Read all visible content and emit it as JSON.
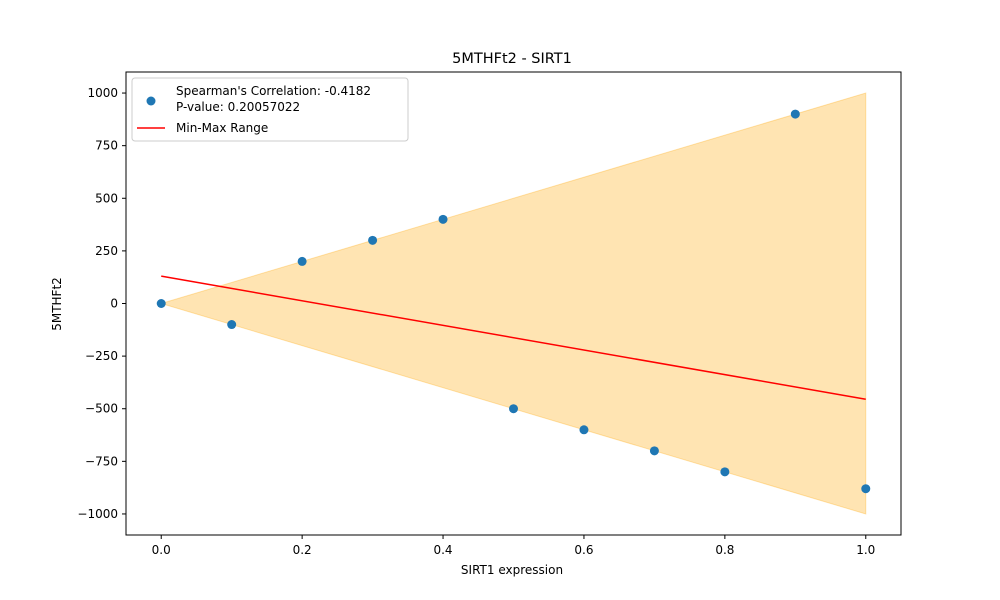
{
  "chart_data": {
    "type": "scatter",
    "title": "5MTHFt2 - SIRT1",
    "xlabel": "SIRT1 expression",
    "ylabel": "5MTHFt2",
    "xlim": [
      -0.05,
      1.05
    ],
    "ylim": [
      -1100,
      1100
    ],
    "xticks": [
      0.0,
      0.2,
      0.4,
      0.6,
      0.8,
      1.0
    ],
    "xtick_labels": [
      "0.0",
      "0.2",
      "0.4",
      "0.6",
      "0.8",
      "1.0"
    ],
    "yticks": [
      1000,
      750,
      500,
      250,
      0,
      -250,
      -500,
      -750,
      -1000
    ],
    "ytick_labels": [
      "1000",
      "750",
      "500",
      "250",
      "0",
      "−250",
      "−500",
      "−750",
      "−1000"
    ],
    "grid": false,
    "legend_location": "upper-left",
    "points": {
      "x": [
        0.0,
        0.1,
        0.2,
        0.3,
        0.4,
        0.5,
        0.6,
        0.7,
        0.8,
        0.9,
        1.0
      ],
      "y": [
        0,
        -100,
        200,
        300,
        400,
        -500,
        -600,
        -700,
        -800,
        900,
        -880
      ],
      "color": "#1f77b4"
    },
    "trend_line": {
      "x": [
        0.0,
        1.0
      ],
      "y": [
        130,
        -455
      ],
      "color": "#ff0000"
    },
    "range_band": {
      "x": [
        0.0,
        1.0
      ],
      "upper": [
        0,
        1000
      ],
      "lower": [
        0,
        -1000
      ],
      "color": "#ffa500",
      "opacity": 0.3
    },
    "legend": {
      "scatter_line1": "Spearman's Correlation: -0.4182",
      "scatter_line2": "P-value: 0.20057022",
      "line_label": "Min-Max Range"
    }
  }
}
